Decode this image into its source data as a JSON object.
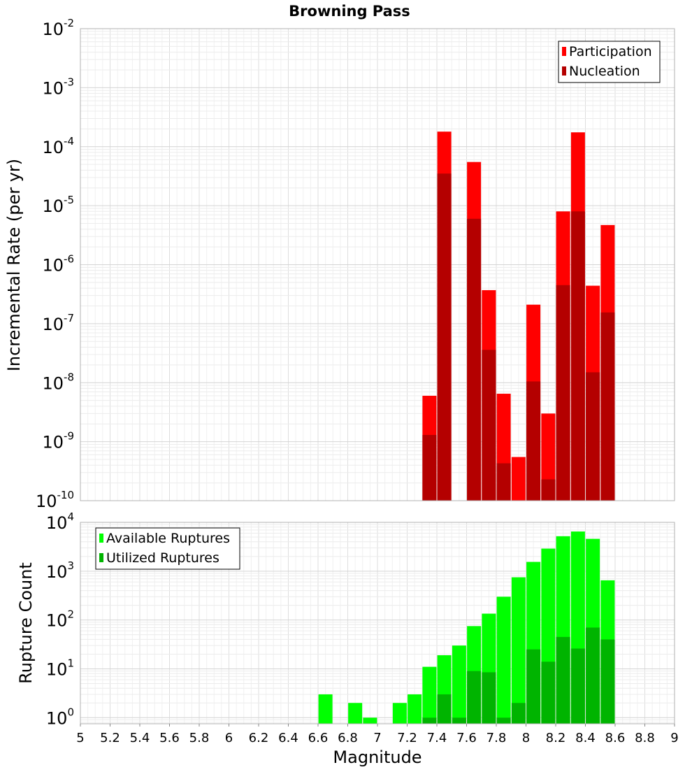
{
  "chart_data": [
    {
      "type": "bar",
      "id": "rate",
      "title": "Browning Pass",
      "xlabel": "",
      "ylabel": "Incremental Rate (per yr)",
      "yscale": "log",
      "ylim": [
        1e-10,
        0.01
      ],
      "xlim": [
        5,
        9
      ],
      "legend_position": "top-right",
      "series": [
        {
          "name": "Participation",
          "color": "#ff0000",
          "points": [
            {
              "x": 7.35,
              "y": 6e-09
            },
            {
              "x": 7.45,
              "y": 0.00018
            },
            {
              "x": 7.65,
              "y": 5.5e-05
            },
            {
              "x": 7.75,
              "y": 3.7e-07
            },
            {
              "x": 7.85,
              "y": 6.5e-09
            },
            {
              "x": 7.95,
              "y": 5.5e-10
            },
            {
              "x": 8.05,
              "y": 2.1e-07
            },
            {
              "x": 8.15,
              "y": 3e-09
            },
            {
              "x": 8.25,
              "y": 8e-06
            },
            {
              "x": 8.35,
              "y": 0.000175
            },
            {
              "x": 8.45,
              "y": 4.4e-07
            },
            {
              "x": 8.55,
              "y": 4.7e-06
            }
          ]
        },
        {
          "name": "Nucleation",
          "color": "#b40000",
          "points": [
            {
              "x": 7.35,
              "y": 1.3e-09
            },
            {
              "x": 7.45,
              "y": 3.5e-05
            },
            {
              "x": 7.65,
              "y": 6e-06
            },
            {
              "x": 7.75,
              "y": 3.6e-08
            },
            {
              "x": 7.85,
              "y": 4.3e-10
            },
            {
              "x": 8.05,
              "y": 1.05e-08
            },
            {
              "x": 8.15,
              "y": 2.3e-10
            },
            {
              "x": 8.25,
              "y": 4.5e-07
            },
            {
              "x": 8.35,
              "y": 8e-06
            },
            {
              "x": 8.45,
              "y": 1.5e-08
            },
            {
              "x": 8.55,
              "y": 1.55e-07
            }
          ]
        }
      ],
      "y_tick_labels": [
        {
          "value": 0.01,
          "base": "10",
          "exp": "-2"
        },
        {
          "value": 0.001,
          "base": "10",
          "exp": "-3"
        },
        {
          "value": 0.0001,
          "base": "10",
          "exp": "-4"
        },
        {
          "value": 1e-05,
          "base": "10",
          "exp": "-5"
        },
        {
          "value": 1e-06,
          "base": "10",
          "exp": "-6"
        },
        {
          "value": 1e-07,
          "base": "10",
          "exp": "-7"
        },
        {
          "value": 1e-08,
          "base": "10",
          "exp": "-8"
        },
        {
          "value": 1e-09,
          "base": "10",
          "exp": "-9"
        },
        {
          "value": 1e-10,
          "base": "10",
          "exp": "-10"
        }
      ]
    },
    {
      "type": "bar",
      "id": "count",
      "title": "",
      "xlabel": "Magnitude",
      "ylabel": "Rupture Count",
      "yscale": "log",
      "ylim": [
        0.75,
        10000
      ],
      "xlim": [
        5,
        9
      ],
      "legend_position": "top-left",
      "series": [
        {
          "name": "Available Ruptures",
          "color": "#00ff00",
          "points": [
            {
              "x": 6.65,
              "y": 3
            },
            {
              "x": 6.85,
              "y": 2
            },
            {
              "x": 6.95,
              "y": 1
            },
            {
              "x": 7.15,
              "y": 2
            },
            {
              "x": 7.25,
              "y": 3
            },
            {
              "x": 7.35,
              "y": 11
            },
            {
              "x": 7.45,
              "y": 19
            },
            {
              "x": 7.55,
              "y": 30
            },
            {
              "x": 7.65,
              "y": 75
            },
            {
              "x": 7.75,
              "y": 135
            },
            {
              "x": 7.85,
              "y": 300
            },
            {
              "x": 7.95,
              "y": 750
            },
            {
              "x": 8.05,
              "y": 1550
            },
            {
              "x": 8.15,
              "y": 2900
            },
            {
              "x": 8.25,
              "y": 5200
            },
            {
              "x": 8.35,
              "y": 6500
            },
            {
              "x": 8.45,
              "y": 4600
            },
            {
              "x": 8.55,
              "y": 650
            }
          ]
        },
        {
          "name": "Utilized Ruptures",
          "color": "#00b400",
          "points": [
            {
              "x": 7.35,
              "y": 1
            },
            {
              "x": 7.45,
              "y": 3
            },
            {
              "x": 7.55,
              "y": 1
            },
            {
              "x": 7.65,
              "y": 9
            },
            {
              "x": 7.75,
              "y": 8.5
            },
            {
              "x": 7.85,
              "y": 1
            },
            {
              "x": 7.95,
              "y": 2
            },
            {
              "x": 8.05,
              "y": 25
            },
            {
              "x": 8.15,
              "y": 14
            },
            {
              "x": 8.25,
              "y": 45
            },
            {
              "x": 8.35,
              "y": 26
            },
            {
              "x": 8.45,
              "y": 70
            },
            {
              "x": 8.55,
              "y": 40
            }
          ]
        }
      ],
      "y_tick_labels": [
        {
          "value": 10000,
          "base": "10",
          "exp": "4"
        },
        {
          "value": 1000,
          "base": "10",
          "exp": "3"
        },
        {
          "value": 100,
          "base": "10",
          "exp": "2"
        },
        {
          "value": 10,
          "base": "10",
          "exp": "1"
        },
        {
          "value": 1,
          "base": "10",
          "exp": "0"
        }
      ],
      "x_tick_labels": [
        {
          "value": 5,
          "label": "5"
        },
        {
          "value": 5.2,
          "label": "5.2"
        },
        {
          "value": 5.4,
          "label": "5.4"
        },
        {
          "value": 5.6,
          "label": "5.6"
        },
        {
          "value": 5.8,
          "label": "5.8"
        },
        {
          "value": 6,
          "label": "6"
        },
        {
          "value": 6.2,
          "label": "6.2"
        },
        {
          "value": 6.4,
          "label": "6.4"
        },
        {
          "value": 6.6,
          "label": "6.6"
        },
        {
          "value": 6.8,
          "label": "6.8"
        },
        {
          "value": 7,
          "label": "7"
        },
        {
          "value": 7.2,
          "label": "7.2"
        },
        {
          "value": 7.4,
          "label": "7.4"
        },
        {
          "value": 7.6,
          "label": "7.6"
        },
        {
          "value": 7.8,
          "label": "7.8"
        },
        {
          "value": 8,
          "label": "8"
        },
        {
          "value": 8.2,
          "label": "8.2"
        },
        {
          "value": 8.4,
          "label": "8.4"
        },
        {
          "value": 8.6,
          "label": "8.6"
        },
        {
          "value": 8.8,
          "label": "8.8"
        },
        {
          "value": 9,
          "label": "9"
        }
      ]
    }
  ]
}
